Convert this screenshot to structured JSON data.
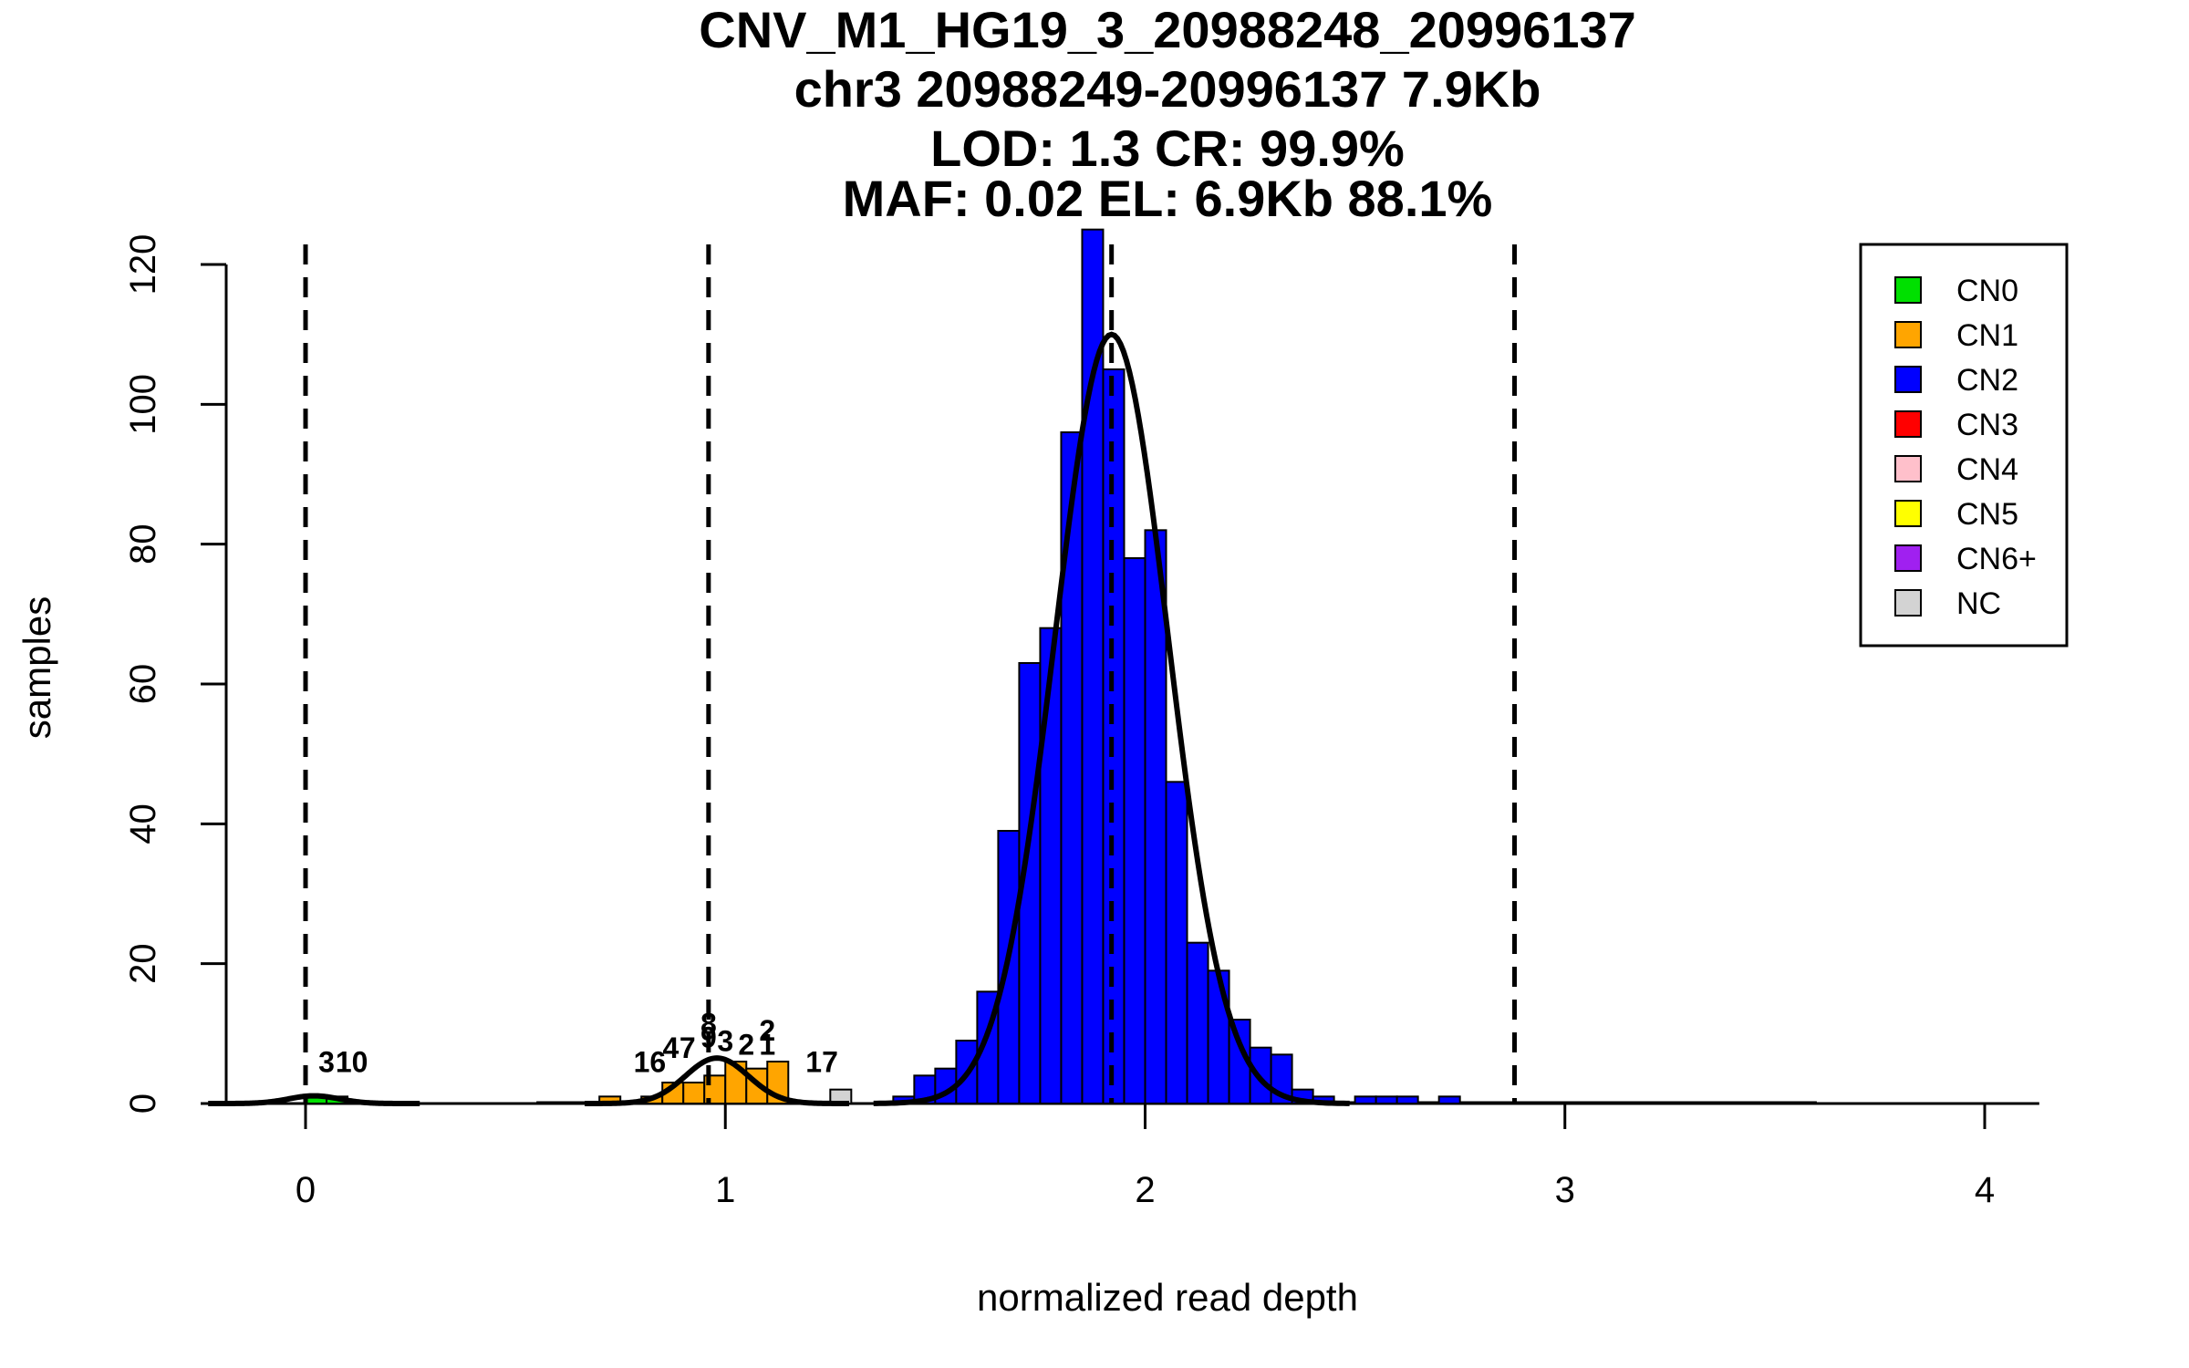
{
  "chart_data": {
    "type": "bar",
    "title_lines": [
      "CNV_M1_HG19_3_20988248_20996137",
      "chr3 20988249-20996137 7.9Kb",
      "LOD: 1.3 CR: 99.9%",
      "MAF: 0.02 EL: 6.9Kb 88.1%"
    ],
    "xlabel": "normalized read depth",
    "ylabel": "samples",
    "xlim": [
      -0.2,
      4.13
    ],
    "ylim": [
      0,
      125
    ],
    "xticks": [
      0,
      1,
      2,
      3,
      4
    ],
    "yticks": [
      0,
      20,
      40,
      60,
      80,
      100,
      120
    ],
    "bin_width": 0.05,
    "dashed_lines_x": [
      0,
      0.96,
      1.92,
      2.88
    ],
    "series": [
      {
        "name": "CN0",
        "color": "#00e000",
        "bins": [
          [
            0.0,
            1
          ],
          [
            0.05,
            1
          ]
        ]
      },
      {
        "name": "CN1",
        "color": "#ffa500",
        "bins": [
          [
            0.7,
            1
          ],
          [
            0.8,
            1
          ],
          [
            0.85,
            3
          ],
          [
            0.9,
            3
          ],
          [
            0.95,
            4
          ],
          [
            1.0,
            6
          ],
          [
            1.05,
            5
          ],
          [
            1.1,
            6
          ]
        ]
      },
      {
        "name": "CN2",
        "color": "#0000ff",
        "bins": [
          [
            1.4,
            1
          ],
          [
            1.45,
            4
          ],
          [
            1.5,
            5
          ],
          [
            1.55,
            9
          ],
          [
            1.6,
            16
          ],
          [
            1.65,
            39
          ],
          [
            1.7,
            63
          ],
          [
            1.75,
            68
          ],
          [
            1.8,
            96
          ],
          [
            1.85,
            125
          ],
          [
            1.9,
            105
          ],
          [
            1.95,
            78
          ],
          [
            2.0,
            82
          ],
          [
            2.05,
            46
          ],
          [
            2.1,
            23
          ],
          [
            2.15,
            19
          ],
          [
            2.2,
            12
          ],
          [
            2.25,
            8
          ],
          [
            2.3,
            7
          ],
          [
            2.35,
            2
          ],
          [
            2.4,
            1
          ],
          [
            2.5,
            1
          ],
          [
            2.55,
            1
          ],
          [
            2.6,
            1
          ],
          [
            2.7,
            1
          ]
        ]
      },
      {
        "name": "CN3",
        "color": "#ff0000",
        "bins": []
      },
      {
        "name": "CN4",
        "color": "#ffc0cb",
        "bins": []
      },
      {
        "name": "CN5",
        "color": "#ffff00",
        "bins": []
      },
      {
        "name": "CN6+",
        "color": "#a020f0",
        "bins": []
      },
      {
        "name": "NC",
        "color": "#d3d3d3",
        "bins": [
          [
            1.25,
            2
          ]
        ]
      }
    ],
    "curves": [
      {
        "mean": 0.02,
        "sd": 0.06,
        "peak": 1.1
      },
      {
        "mean": 0.98,
        "sd": 0.075,
        "peak": 6.5
      },
      {
        "mean": 1.92,
        "sd": 0.135,
        "peak": 110
      }
    ],
    "count_labels": [
      {
        "text": "3",
        "x": 0.05,
        "y": 4.5
      },
      {
        "text": "10",
        "x": 0.11,
        "y": 4.5
      },
      {
        "text": "16",
        "x": 0.82,
        "y": 4.5
      },
      {
        "text": "4",
        "x": 0.87,
        "y": 6.5
      },
      {
        "text": "7",
        "x": 0.91,
        "y": 6.5
      },
      {
        "text": "8",
        "x": 0.96,
        "y": 10
      },
      {
        "text": "9",
        "x": 0.96,
        "y": 8
      },
      {
        "text": "3",
        "x": 1.0,
        "y": 7.5
      },
      {
        "text": "2",
        "x": 1.05,
        "y": 7
      },
      {
        "text": "1",
        "x": 1.1,
        "y": 7
      },
      {
        "text": "2",
        "x": 1.1,
        "y": 9
      },
      {
        "text": "17",
        "x": 1.23,
        "y": 4.5
      }
    ],
    "legend": {
      "position": "top-right",
      "entries": [
        "CN0",
        "CN1",
        "CN2",
        "CN3",
        "CN4",
        "CN5",
        "CN6+",
        "NC"
      ]
    },
    "grid": false
  }
}
